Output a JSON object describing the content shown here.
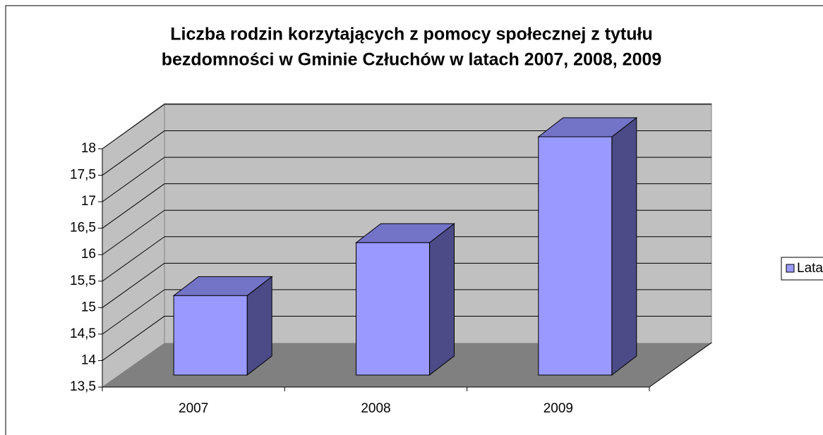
{
  "chart_data": {
    "type": "bar3d",
    "title": "Liczba rodzin korzytających z pomocy społecznej z tytułu",
    "subtitle": "bezdomności w Gminie Człuchów w latach 2007, 2008, 2009",
    "categories": [
      "2007",
      "2008",
      "2009"
    ],
    "series": [
      {
        "name": "Lata",
        "color": "#9999ff",
        "values": [
          15,
          16,
          18
        ]
      }
    ],
    "ylim": [
      13.5,
      18
    ],
    "yticks": [
      {
        "value": 13.5,
        "label": "13,5"
      },
      14,
      {
        "value": 14.5,
        "label": "14,5"
      },
      15,
      {
        "value": 15.5,
        "label": "15,5"
      },
      16,
      {
        "value": 16.5,
        "label": "16,5"
      },
      17,
      {
        "value": 17.5,
        "label": "17,5"
      },
      18
    ],
    "grid": true,
    "legend": "right"
  }
}
